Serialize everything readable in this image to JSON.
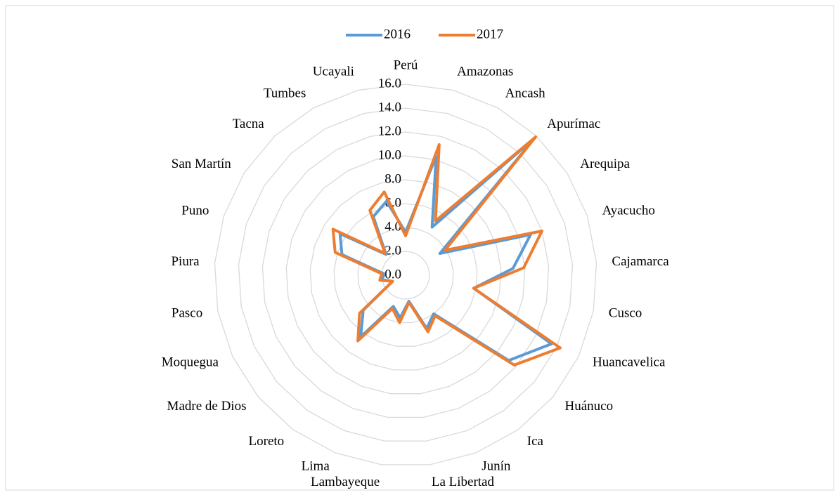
{
  "chart_data": {
    "type": "radar",
    "categories": [
      "Perú",
      "Amazonas",
      "Ancash",
      "Apurímac",
      "Arequipa",
      "Ayacucho",
      "Cajamarca",
      "Cusco",
      "Huancavelica",
      "Huánuco",
      "Ica",
      "Junín",
      "La Libertad",
      "Lambayeque",
      "Lima",
      "Loreto",
      "Madre de Dios",
      "Moquegua",
      "Pasco",
      "Piura",
      "Puno",
      "San Martín",
      "Tacna",
      "Tumbes",
      "Ucayali"
    ],
    "series": [
      {
        "name": "2016",
        "color": "#5b9bd5",
        "values": [
          3.6,
          10.3,
          4.6,
          15.8,
          3.4,
          11.0,
          9.0,
          5.8,
          13.5,
          11.2,
          4.0,
          4.8,
          2.2,
          3.6,
          2.8,
          6.4,
          4.6,
          1.2,
          2.0,
          1.8,
          5.6,
          6.5,
          2.4,
          5.6,
          6.4
        ]
      },
      {
        "name": "2017",
        "color": "#ed7d31",
        "values": [
          3.3,
          11.3,
          5.2,
          15.9,
          3.9,
          12.0,
          9.9,
          5.8,
          14.3,
          11.8,
          4.2,
          5.1,
          2.3,
          4.0,
          3.0,
          6.8,
          5.0,
          1.2,
          2.2,
          2.0,
          6.2,
          7.2,
          2.5,
          6.2,
          7.2
        ]
      }
    ],
    "ylim": [
      0,
      16
    ],
    "yticks": [
      {
        "value": 0,
        "label": "0.0"
      },
      {
        "value": 2,
        "label": "2.0"
      },
      {
        "value": 4,
        "label": "4.0"
      },
      {
        "value": 6,
        "label": "6.0"
      },
      {
        "value": 8,
        "label": "8.0"
      },
      {
        "value": 10,
        "label": "10.0"
      },
      {
        "value": 12,
        "label": "12.0"
      },
      {
        "value": 14,
        "label": "14.0"
      },
      {
        "value": 16,
        "label": "16.0"
      }
    ],
    "grid": true,
    "legend": "top"
  }
}
